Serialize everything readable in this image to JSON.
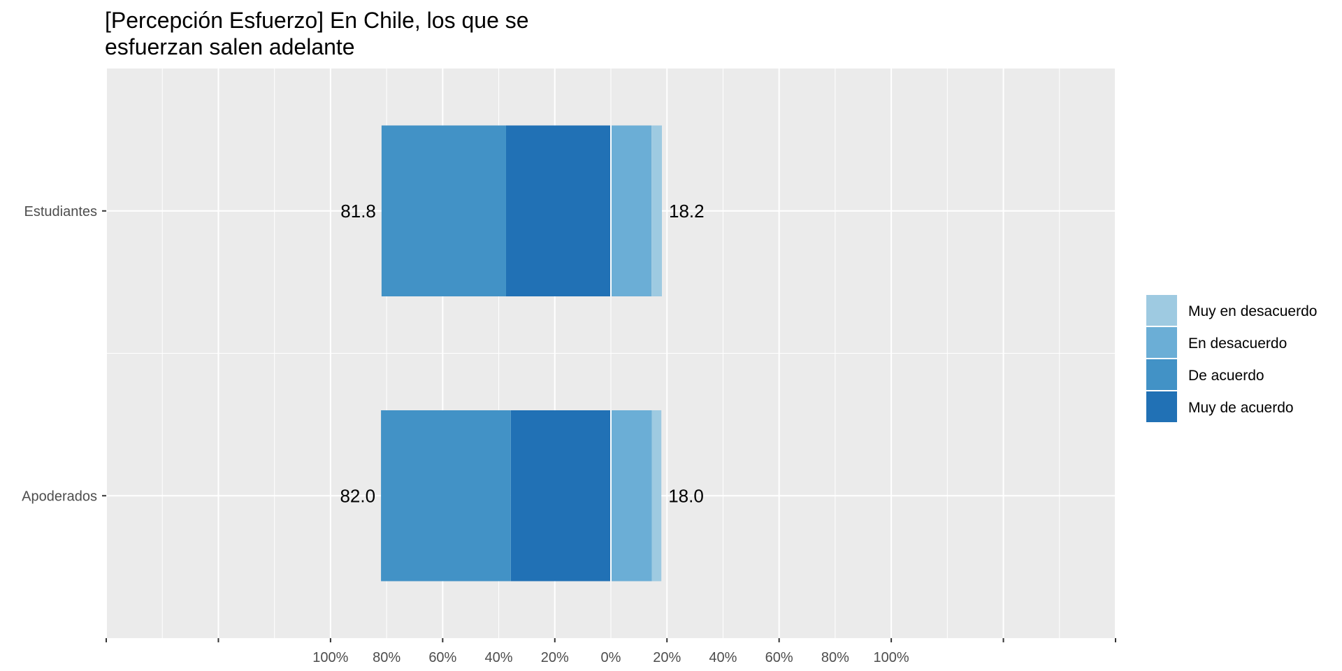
{
  "chart_data": {
    "type": "bar",
    "orientation": "horizontal",
    "stacked": "diverging",
    "title": "[Percepción Esfuerzo] En Chile, los que se esfuerzan salen adelante",
    "title_lines": [
      "[Percepción Esfuerzo] En Chile, los que se",
      "esfuerzan salen adelante"
    ],
    "xlabel": "",
    "ylabel": "",
    "categories": [
      "Estudiantes",
      "Apoderados"
    ],
    "series": [
      {
        "name": "Muy de acuerdo",
        "side": "left",
        "color": "#2171b5",
        "values": [
          37.4,
          35.7
        ]
      },
      {
        "name": "De acuerdo",
        "side": "left",
        "color": "#4292c6",
        "values": [
          44.4,
          46.3
        ]
      },
      {
        "name": "En desacuerdo",
        "side": "right",
        "color": "#6baed6",
        "values": [
          14.5,
          14.6
        ]
      },
      {
        "name": "Muy en desacuerdo",
        "side": "right",
        "color": "#9ecae1",
        "values": [
          3.7,
          3.4
        ]
      }
    ],
    "left_totals": [
      "81.8",
      "82.0"
    ],
    "right_totals": [
      "18.2",
      "18.0"
    ],
    "xlim": [
      -180,
      180
    ],
    "x_tick_values": [
      -100,
      -80,
      -60,
      -40,
      -20,
      0,
      20,
      40,
      60,
      80,
      100
    ],
    "x_tick_labels": [
      "100%",
      "80%",
      "60%",
      "40%",
      "20%",
      "0%",
      "20%",
      "40%",
      "60%",
      "80%",
      "100%"
    ],
    "x_major_grid": [
      -180,
      -140,
      -100,
      -60,
      -20,
      20,
      60,
      100,
      140,
      180
    ],
    "grid": true,
    "panel_background": "#ebebeb",
    "legend": {
      "position": "right",
      "order": [
        "Muy en desacuerdo",
        "En desacuerdo",
        "De acuerdo",
        "Muy de acuerdo"
      ]
    }
  }
}
